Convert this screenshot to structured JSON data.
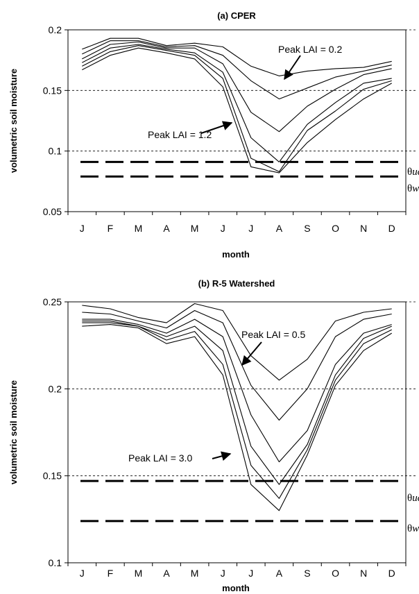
{
  "chart_data": [
    {
      "type": "line",
      "title": "(a) CPER",
      "xlabel": "month",
      "ylabel": "volumetric soil moisture",
      "categories": [
        "J",
        "F",
        "M",
        "A",
        "M",
        "J",
        "J",
        "A",
        "S",
        "O",
        "N",
        "D"
      ],
      "ylim": [
        0.05,
        0.2
      ],
      "yticks": [
        "0.05",
        "0.1",
        "0.15",
        "0.2"
      ],
      "ytick_values": [
        0.05,
        0.1,
        0.15,
        0.2
      ],
      "grid_y": [
        0.1,
        0.15,
        0.2
      ],
      "series": [
        {
          "values": [
            0.184,
            0.193,
            0.193,
            0.187,
            0.189,
            0.186,
            0.17,
            0.162,
            0.166,
            0.168,
            0.169,
            0.174
          ]
        },
        {
          "values": [
            0.18,
            0.191,
            0.191,
            0.186,
            0.187,
            0.179,
            0.158,
            0.143,
            0.152,
            0.161,
            0.166,
            0.171
          ]
        },
        {
          "values": [
            0.176,
            0.188,
            0.19,
            0.185,
            0.185,
            0.172,
            0.132,
            0.116,
            0.137,
            0.151,
            0.163,
            0.168
          ]
        },
        {
          "values": [
            0.173,
            0.185,
            0.188,
            0.184,
            0.181,
            0.165,
            0.111,
            0.091,
            0.122,
            0.14,
            0.156,
            0.16
          ]
        },
        {
          "values": [
            0.17,
            0.182,
            0.187,
            0.183,
            0.179,
            0.16,
            0.094,
            0.083,
            0.117,
            0.133,
            0.151,
            0.158
          ]
        },
        {
          "values": [
            0.167,
            0.179,
            0.185,
            0.181,
            0.176,
            0.153,
            0.087,
            0.082,
            0.107,
            0.126,
            0.143,
            0.156
          ]
        }
      ],
      "thresholds": [
        {
          "label": "uc",
          "value": 0.091
        },
        {
          "label": "w",
          "value": 0.079
        }
      ],
      "annotations": [
        "Peak LAI = 0.2",
        "Peak LAI = 1.2"
      ]
    },
    {
      "type": "line",
      "title": "(b) R-5 Watershed",
      "xlabel": "month",
      "ylabel": "volumetric soil moisture",
      "categories": [
        "J",
        "F",
        "M",
        "A",
        "M",
        "J",
        "J",
        "A",
        "S",
        "O",
        "N",
        "D"
      ],
      "ylim": [
        0.1,
        0.25
      ],
      "yticks": [
        "0.1",
        "0.15",
        "0.2",
        "0.25"
      ],
      "ytick_values": [
        0.1,
        0.15,
        0.2,
        0.25
      ],
      "grid_y": [
        0.15,
        0.2,
        0.25
      ],
      "series": [
        {
          "values": [
            0.248,
            0.246,
            0.241,
            0.238,
            0.249,
            0.245,
            0.219,
            0.205,
            0.217,
            0.239,
            0.244,
            0.246
          ]
        },
        {
          "values": [
            0.244,
            0.243,
            0.239,
            0.235,
            0.245,
            0.238,
            0.202,
            0.182,
            0.2,
            0.23,
            0.24,
            0.243
          ]
        },
        {
          "values": [
            0.24,
            0.24,
            0.237,
            0.232,
            0.24,
            0.23,
            0.185,
            0.158,
            0.176,
            0.214,
            0.232,
            0.237
          ]
        },
        {
          "values": [
            0.239,
            0.239,
            0.236,
            0.23,
            0.236,
            0.222,
            0.167,
            0.145,
            0.168,
            0.208,
            0.229,
            0.236
          ]
        },
        {
          "values": [
            0.238,
            0.238,
            0.236,
            0.228,
            0.233,
            0.214,
            0.156,
            0.137,
            0.165,
            0.205,
            0.226,
            0.234
          ]
        },
        {
          "values": [
            0.236,
            0.237,
            0.235,
            0.226,
            0.23,
            0.208,
            0.145,
            0.13,
            0.162,
            0.202,
            0.222,
            0.232
          ]
        }
      ],
      "thresholds": [
        {
          "label": "uc",
          "value": 0.147
        },
        {
          "label": "w",
          "value": 0.124
        }
      ],
      "annotations": [
        "Peak LAI = 0.5",
        "Peak LAI = 3.0"
      ]
    }
  ],
  "theta_symbol": "θ"
}
